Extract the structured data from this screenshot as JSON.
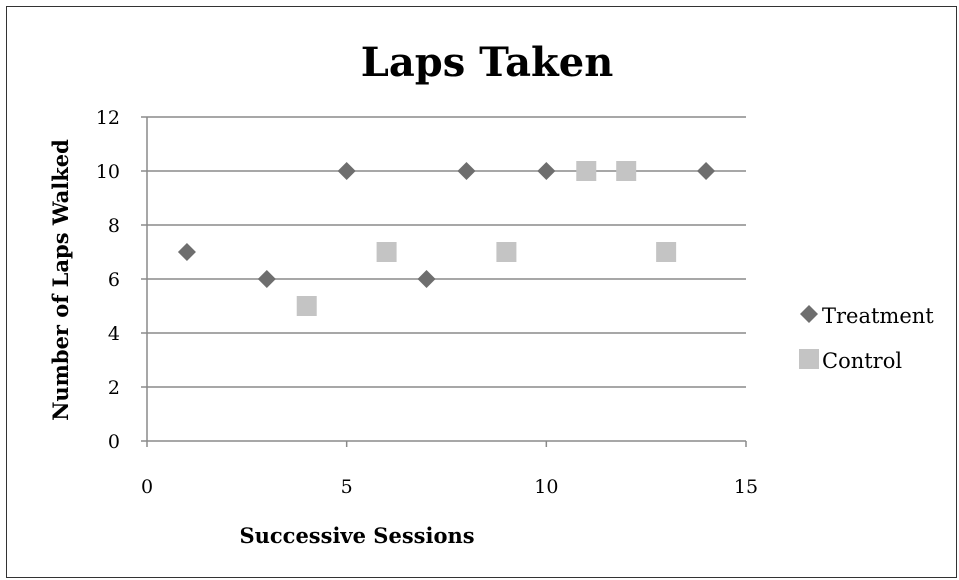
{
  "chart_data": {
    "type": "scatter",
    "title": "Laps Taken",
    "xlabel": "Successive Sessions",
    "ylabel": "Number of Laps Walked",
    "xlim": [
      0,
      15
    ],
    "ylim": [
      0,
      12
    ],
    "xticks": [
      0,
      5,
      10,
      15
    ],
    "yticks": [
      0,
      2,
      4,
      6,
      8,
      10,
      12
    ],
    "grid": "horizontal",
    "legend_position": "right",
    "series": [
      {
        "name": "Treatment",
        "marker": "diamond",
        "color": "#6e6e6e",
        "points": [
          {
            "x": 1,
            "y": 7
          },
          {
            "x": 3,
            "y": 6
          },
          {
            "x": 5,
            "y": 10
          },
          {
            "x": 7,
            "y": 6
          },
          {
            "x": 8,
            "y": 10
          },
          {
            "x": 10,
            "y": 10
          },
          {
            "x": 14,
            "y": 10
          }
        ]
      },
      {
        "name": "Control",
        "marker": "square",
        "color": "#c4c4c4",
        "points": [
          {
            "x": 4,
            "y": 5
          },
          {
            "x": 6,
            "y": 7
          },
          {
            "x": 9,
            "y": 7
          },
          {
            "x": 11,
            "y": 10
          },
          {
            "x": 12,
            "y": 10
          },
          {
            "x": 13,
            "y": 7
          }
        ]
      }
    ]
  }
}
